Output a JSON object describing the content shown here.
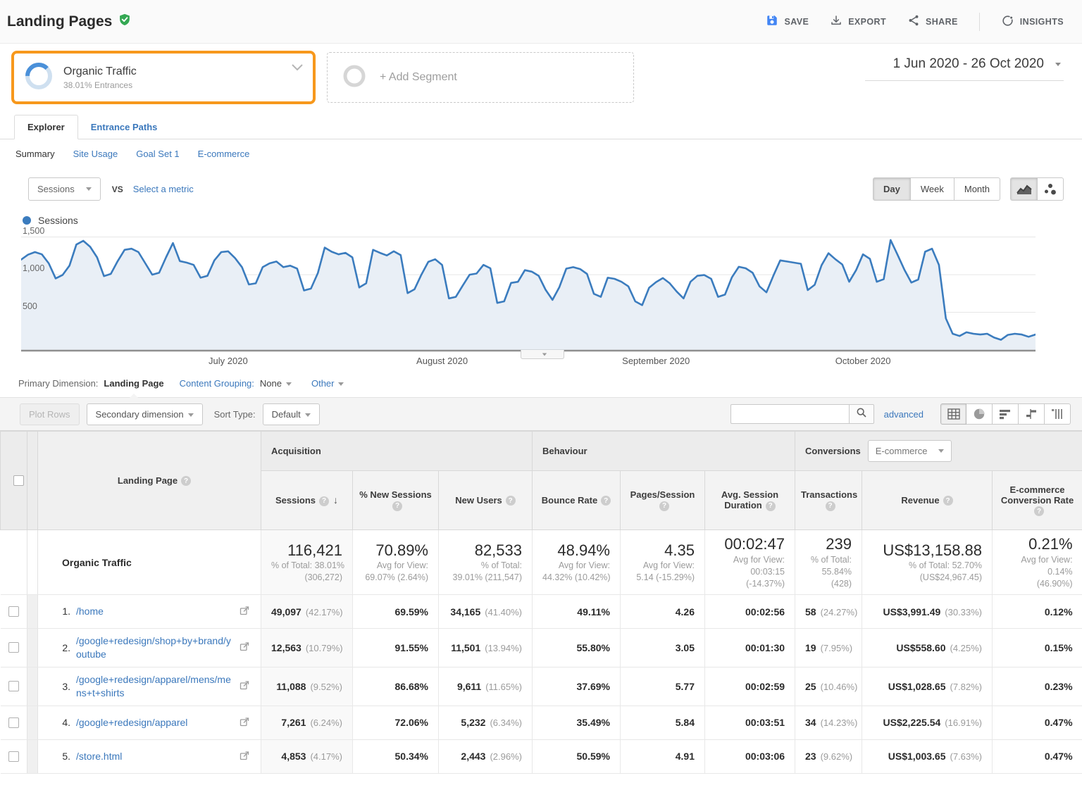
{
  "header": {
    "title": "Landing Pages",
    "actions": {
      "save": "SAVE",
      "export": "EXPORT",
      "share": "SHARE",
      "insights": "INSIGHTS"
    }
  },
  "segment_bar": {
    "segment_name": "Organic Traffic",
    "segment_detail": "38.01% Entrances",
    "segment_pct": 38.01,
    "highlight_color": "#f7981c",
    "add_segment": "+ Add Segment",
    "date_range": "1 Jun 2020 - 26 Oct 2020"
  },
  "tabs": {
    "explorer": "Explorer",
    "entrance_paths": "Entrance Paths"
  },
  "subnav": {
    "summary": "Summary",
    "site_usage": "Site Usage",
    "goal_set": "Goal Set 1",
    "ecommerce": "E-commerce"
  },
  "chart_controls": {
    "metric_selector": "Sessions",
    "vs_label": "VS",
    "select_metric": "Select a metric",
    "granularity": {
      "day": "Day",
      "week": "Week",
      "month": "Month",
      "active": "Day"
    }
  },
  "chart_data": {
    "type": "area",
    "legend": "Sessions",
    "line_color": "#3b7cbe",
    "fill_color": "#e9eff6",
    "x_start": "1 Jun 2020",
    "x_end": "26 Oct 2020",
    "x_tick_labels": [
      "July 2020",
      "August 2020",
      "September 2020",
      "October 2020"
    ],
    "x_tick_day_index": [
      30,
      61,
      92,
      122
    ],
    "y_ticks": [
      500,
      1000,
      1500
    ],
    "y_tick_labels": [
      "500",
      "1,000",
      "1,500"
    ],
    "ylim": [
      0,
      1590
    ],
    "grid": true,
    "series": [
      {
        "name": "Sessions",
        "values": [
          1200,
          1265,
          1300,
          1270,
          1150,
          950,
          995,
          1120,
          1400,
          1450,
          1370,
          1230,
          980,
          1010,
          1180,
          1330,
          1345,
          1300,
          1150,
          1000,
          1025,
          1230,
          1420,
          1180,
          1160,
          1130,
          960,
          985,
          1190,
          1300,
          1310,
          1220,
          1100,
          870,
          885,
          1100,
          1150,
          1175,
          1100,
          1120,
          1080,
          790,
          815,
          1020,
          1360,
          1305,
          1270,
          1290,
          1230,
          830,
          885,
          1330,
          1290,
          1255,
          1310,
          1260,
          755,
          805,
          1000,
          1170,
          1205,
          1130,
          685,
          705,
          855,
          1000,
          1015,
          1130,
          1085,
          625,
          645,
          890,
          905,
          1060,
          1040,
          985,
          800,
          665,
          835,
          1080,
          1100,
          1075,
          1010,
          745,
          705,
          960,
          945,
          905,
          845,
          645,
          595,
          825,
          900,
          955,
          885,
          775,
          685,
          905,
          985,
          995,
          945,
          705,
          735,
          965,
          1105,
          1085,
          1025,
          845,
          765,
          985,
          1190,
          1175,
          1160,
          1145,
          795,
          865,
          1125,
          1285,
          1205,
          1135,
          905,
          1060,
          1270,
          1210,
          905,
          940,
          1460,
          1265,
          1065,
          895,
          935,
          1305,
          1345,
          1130,
          420,
          215,
          185,
          235,
          215,
          205,
          215,
          165,
          135,
          200,
          215,
          205,
          175,
          205
        ]
      }
    ]
  },
  "dimension_bar": {
    "label": "Primary Dimension:",
    "primary": "Landing Page",
    "content_grouping_link": "Content Grouping:",
    "content_grouping_value": "None",
    "other": "Other"
  },
  "toolbar": {
    "plot_rows": "Plot Rows",
    "secondary_dimension": "Secondary dimension",
    "sort_type_label": "Sort Type:",
    "sort_type_value": "Default",
    "search_value": "",
    "advanced": "advanced"
  },
  "table": {
    "landing_page": "Landing Page",
    "groups": {
      "acquisition": "Acquisition",
      "behaviour": "Behaviour",
      "conversions": "Conversions",
      "conversions_type": "E-commerce"
    },
    "metric_headers": [
      "Sessions",
      "% New Sessions",
      "New Users",
      "Bounce Rate",
      "Pages/Session",
      "Avg. Session Duration",
      "Transactions",
      "Revenue",
      "E-commerce Conversion Rate"
    ],
    "summary": {
      "label": "Organic Traffic",
      "metrics": [
        {
          "value": "116,421",
          "sub": [
            "% of Total: 38.01%",
            "(306,272)"
          ]
        },
        {
          "value": "70.89%",
          "sub": [
            "Avg for View:",
            "69.07% (2.64%)"
          ]
        },
        {
          "value": "82,533",
          "sub": [
            "% of Total:",
            "39.01% (211,547)"
          ]
        },
        {
          "value": "48.94%",
          "sub": [
            "Avg for View:",
            "44.32% (10.42%)"
          ]
        },
        {
          "value": "4.35",
          "sub": [
            "Avg for View:",
            "5.14 (-15.29%)"
          ]
        },
        {
          "value": "00:02:47",
          "sub": [
            "Avg for View:",
            "00:03:15",
            "(-14.37%)"
          ]
        },
        {
          "value": "239",
          "sub": [
            "% of Total:",
            "55.84%",
            "(428)"
          ]
        },
        {
          "value": "US$13,158.88",
          "sub": [
            "% of Total: 52.70%",
            "(US$24,967.45)"
          ]
        },
        {
          "value": "0.21%",
          "sub": [
            "Avg for View:",
            "0.14%",
            "(46.90%)"
          ]
        }
      ]
    },
    "rows": [
      {
        "rank": "1.",
        "page": "/home",
        "cells": [
          {
            "v": "49,097",
            "pct": "(42.17%)"
          },
          {
            "v": "69.59%"
          },
          {
            "v": "34,165",
            "pct": "(41.40%)"
          },
          {
            "v": "49.11%"
          },
          {
            "v": "4.26"
          },
          {
            "v": "00:02:56"
          },
          {
            "v": "58",
            "pct": "(24.27%)"
          },
          {
            "v": "US$3,991.49",
            "pct": "(30.33%)"
          },
          {
            "v": "0.12%"
          }
        ]
      },
      {
        "rank": "2.",
        "page": "/google+redesign/shop+by+brand/youtube",
        "cells": [
          {
            "v": "12,563",
            "pct": "(10.79%)"
          },
          {
            "v": "91.55%"
          },
          {
            "v": "11,501",
            "pct": "(13.94%)"
          },
          {
            "v": "55.80%"
          },
          {
            "v": "3.05"
          },
          {
            "v": "00:01:30"
          },
          {
            "v": "19",
            "pct": "(7.95%)"
          },
          {
            "v": "US$558.60",
            "pct": "(4.25%)"
          },
          {
            "v": "0.15%"
          }
        ]
      },
      {
        "rank": "3.",
        "page": "/google+redesign/apparel/mens/mens+t+shirts",
        "cells": [
          {
            "v": "11,088",
            "pct": "(9.52%)"
          },
          {
            "v": "86.68%"
          },
          {
            "v": "9,611",
            "pct": "(11.65%)"
          },
          {
            "v": "37.69%"
          },
          {
            "v": "5.77"
          },
          {
            "v": "00:02:59"
          },
          {
            "v": "25",
            "pct": "(10.46%)"
          },
          {
            "v": "US$1,028.65",
            "pct": "(7.82%)"
          },
          {
            "v": "0.23%"
          }
        ]
      },
      {
        "rank": "4.",
        "page": "/google+redesign/apparel",
        "cells": [
          {
            "v": "7,261",
            "pct": "(6.24%)"
          },
          {
            "v": "72.06%"
          },
          {
            "v": "5,232",
            "pct": "(6.34%)"
          },
          {
            "v": "35.49%"
          },
          {
            "v": "5.84"
          },
          {
            "v": "00:03:51"
          },
          {
            "v": "34",
            "pct": "(14.23%)"
          },
          {
            "v": "US$2,225.54",
            "pct": "(16.91%)"
          },
          {
            "v": "0.47%"
          }
        ]
      },
      {
        "rank": "5.",
        "page": "/store.html",
        "cells": [
          {
            "v": "4,853",
            "pct": "(4.17%)"
          },
          {
            "v": "50.34%"
          },
          {
            "v": "2,443",
            "pct": "(2.96%)"
          },
          {
            "v": "50.59%"
          },
          {
            "v": "4.91"
          },
          {
            "v": "00:03:06"
          },
          {
            "v": "23",
            "pct": "(9.62%)"
          },
          {
            "v": "US$1,003.65",
            "pct": "(7.63%)"
          },
          {
            "v": "0.47%"
          }
        ]
      }
    ]
  }
}
